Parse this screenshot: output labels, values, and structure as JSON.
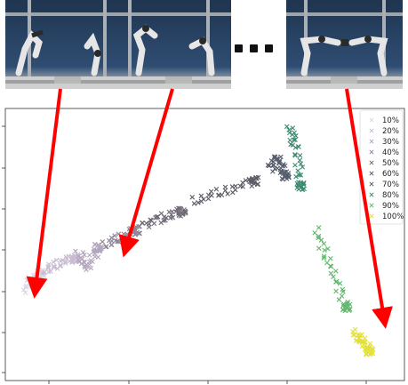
{
  "header": {
    "ellipsis": "...",
    "frames": [
      {
        "name": "frame-start",
        "icon": "robot-arms-start-icon"
      },
      {
        "name": "frame-mid",
        "icon": "robot-arms-mid-icon"
      },
      {
        "name": "frame-end",
        "icon": "robot-arms-end-icon"
      }
    ]
  },
  "chart_data": {
    "type": "scatter",
    "marker": "x",
    "title": "",
    "xlabel": "",
    "ylabel": "",
    "colormap": "viridis",
    "grid": false,
    "legend": {
      "placement": "top-right",
      "entries": [
        "10%",
        "20%",
        "30%",
        "40%",
        "50%",
        "60%",
        "70%",
        "80%",
        "90%",
        "100%"
      ]
    },
    "series": [
      {
        "name": "10%",
        "color": "#ddd6e3",
        "points": [
          [
            0.02,
            0.32
          ],
          [
            0.04,
            0.36
          ],
          [
            0.06,
            0.38
          ]
        ]
      },
      {
        "name": "20%",
        "color": "#c9bcd1",
        "points": [
          [
            0.07,
            0.39
          ],
          [
            0.11,
            0.42
          ],
          [
            0.15,
            0.44
          ]
        ]
      },
      {
        "name": "30%",
        "color": "#b3a6bd",
        "points": [
          [
            0.16,
            0.46
          ],
          [
            0.18,
            0.4
          ],
          [
            0.21,
            0.48
          ]
        ]
      },
      {
        "name": "40%",
        "color": "#8f8598",
        "points": [
          [
            0.23,
            0.49
          ],
          [
            0.27,
            0.52
          ],
          [
            0.31,
            0.55
          ]
        ]
      },
      {
        "name": "50%",
        "color": "#6f6a76",
        "points": [
          [
            0.33,
            0.57
          ],
          [
            0.38,
            0.6
          ],
          [
            0.43,
            0.62
          ]
        ]
      },
      {
        "name": "60%",
        "color": "#5e5a66",
        "points": [
          [
            0.46,
            0.66
          ],
          [
            0.54,
            0.7
          ],
          [
            0.62,
            0.74
          ]
        ]
      },
      {
        "name": "70%",
        "color": "#555c6b",
        "points": [
          [
            0.66,
            0.79
          ],
          [
            0.68,
            0.83
          ],
          [
            0.7,
            0.76
          ]
        ]
      },
      {
        "name": "80%",
        "color": "#3d8a6f",
        "points": [
          [
            0.71,
            0.95
          ],
          [
            0.73,
            0.86
          ],
          [
            0.74,
            0.72
          ]
        ]
      },
      {
        "name": "90%",
        "color": "#5fb86a",
        "points": [
          [
            0.78,
            0.55
          ],
          [
            0.82,
            0.4
          ],
          [
            0.86,
            0.25
          ]
        ]
      },
      {
        "name": "100%",
        "color": "#e3e03a",
        "points": [
          [
            0.88,
            0.15
          ],
          [
            0.9,
            0.12
          ],
          [
            0.92,
            0.08
          ]
        ]
      }
    ]
  }
}
